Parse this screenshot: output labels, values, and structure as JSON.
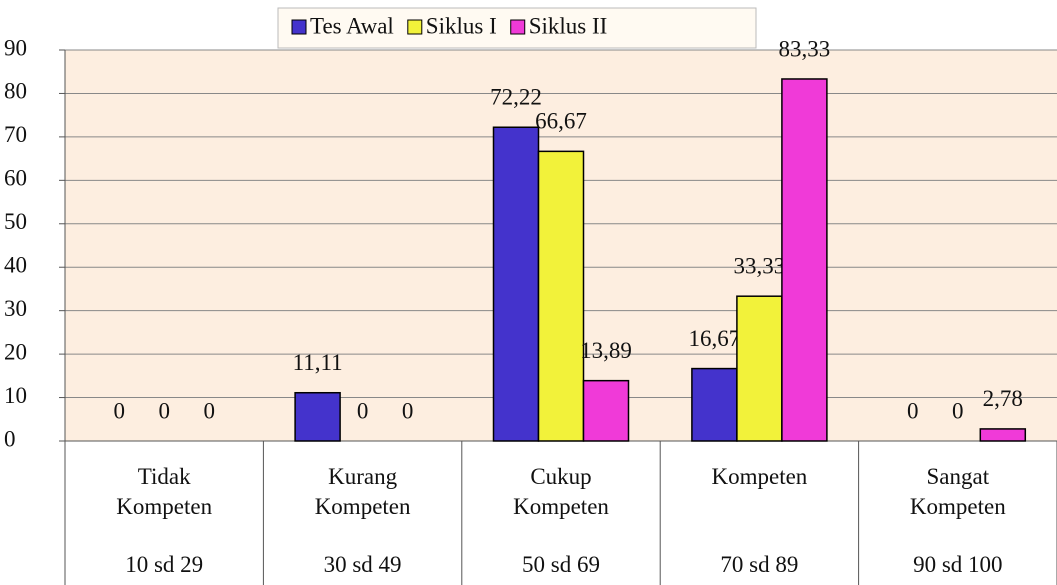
{
  "chart_data": {
    "type": "bar",
    "categories": [
      "Tidak Kompeten",
      "Kurang Kompeten",
      "Cukup Kompeten",
      "Kompeten",
      "Sangat Kompeten"
    ],
    "category_ranges": [
      "10 sd 29",
      "30 sd 49",
      "50 sd 69",
      "70 sd 89",
      "90 sd 100"
    ],
    "series": [
      {
        "name": "Tes Awal",
        "color": "#4433cc",
        "values": [
          0,
          11.11,
          72.22,
          16.67,
          0
        ],
        "value_labels": [
          "0",
          "11,11",
          "72,22",
          "16,67",
          "0"
        ]
      },
      {
        "name": "Siklus I",
        "color": "#f2f23a",
        "values": [
          0,
          0,
          66.67,
          33.33,
          0
        ],
        "value_labels": [
          "0",
          "0",
          "66,67",
          "33,33",
          "0"
        ]
      },
      {
        "name": "Siklus II",
        "color": "#f03ad8",
        "values": [
          0,
          0,
          13.89,
          83.33,
          2.78
        ],
        "value_labels": [
          "0",
          "0",
          "13,89",
          "83,33",
          "2,78"
        ]
      }
    ],
    "ylim": [
      0,
      90
    ],
    "yticks": [
      0,
      10,
      20,
      30,
      40,
      50,
      60,
      70,
      80,
      90
    ],
    "grid": true,
    "legend": "top"
  }
}
